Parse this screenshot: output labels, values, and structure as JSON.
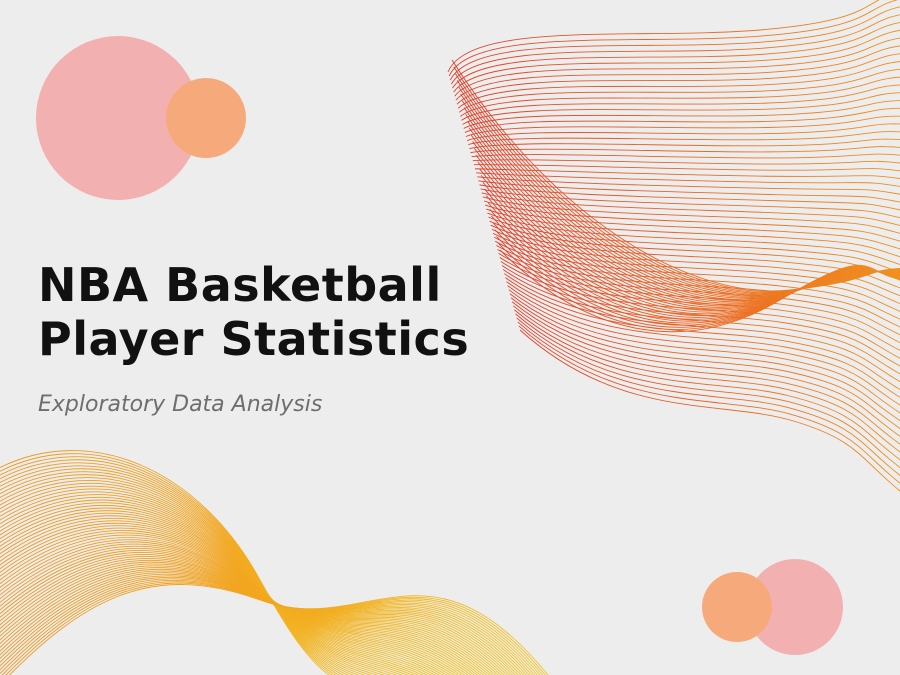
{
  "title": {
    "line1": "NBA Basketball",
    "line2": "Player Statistics"
  },
  "subtitle": "Exploratory Data Analysis",
  "colors": {
    "background": "#ededed",
    "circle_pink": "#f2b1b0",
    "circle_orange": "#f6aa7b",
    "wave_red": "#e0402a",
    "wave_orange": "#f0921e",
    "wave_yellow": "#f2c21e"
  }
}
